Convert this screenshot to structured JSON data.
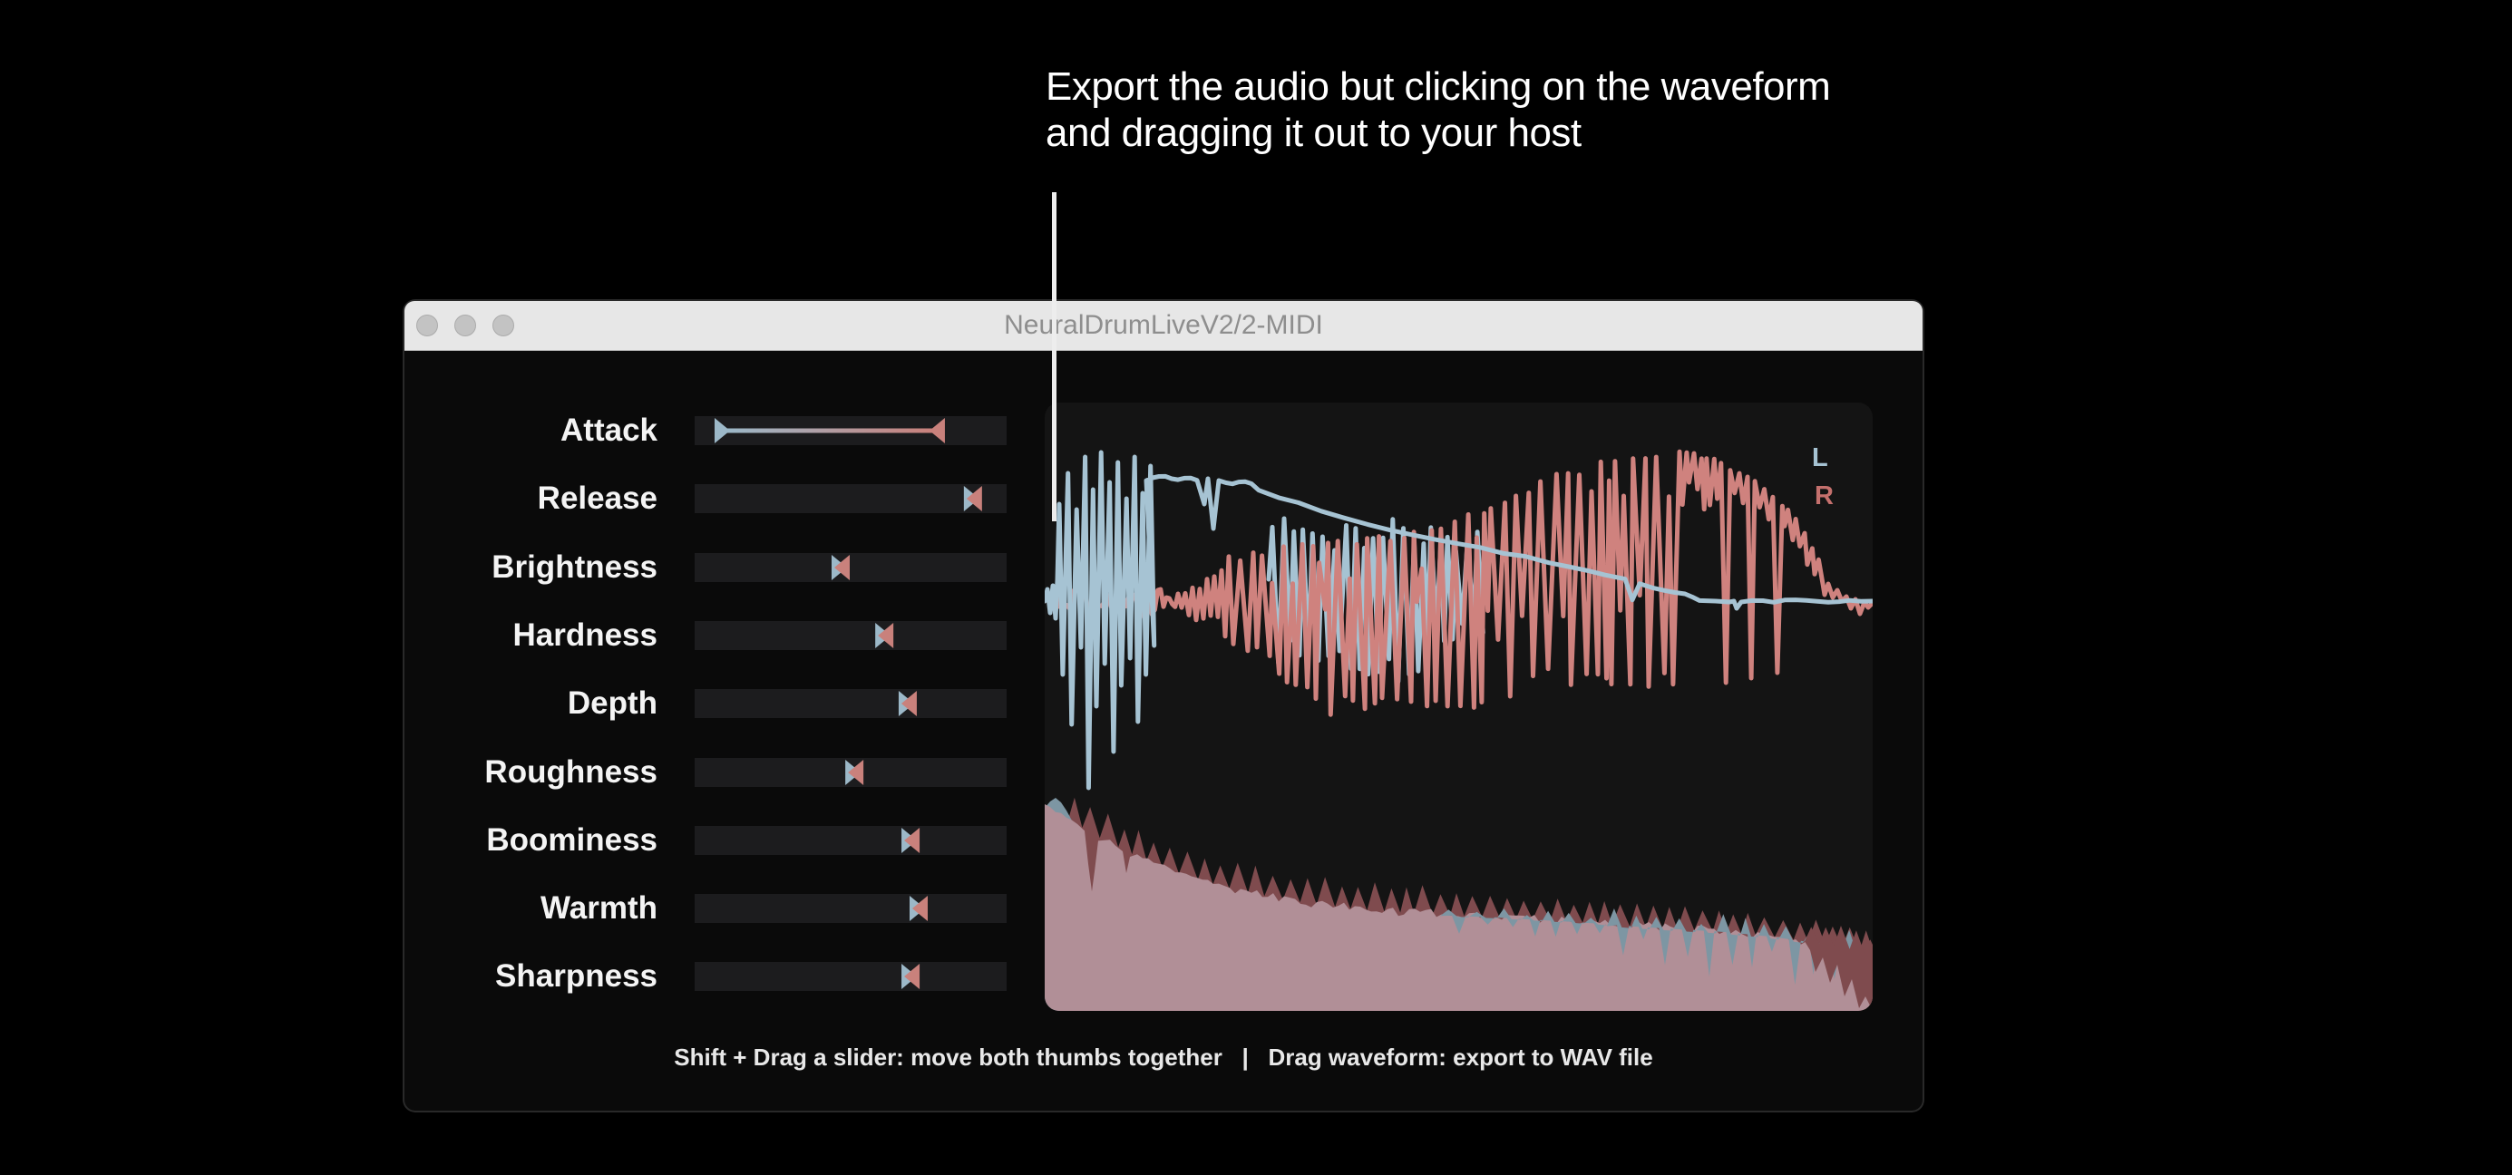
{
  "callout": {
    "line1": "Export the audio but clicking on the waveform",
    "line2": "and dragging it out to your host"
  },
  "window_title": "NeuralDrumLiveV2/2-MIDI",
  "sliders": [
    {
      "label": "Attack",
      "type": "range",
      "min": 0.09,
      "max": 0.776
    },
    {
      "label": "Release",
      "type": "single",
      "value": 0.892
    },
    {
      "label": "Brightness",
      "type": "single",
      "value": 0.468
    },
    {
      "label": "Hardness",
      "type": "single",
      "value": 0.608
    },
    {
      "label": "Depth",
      "type": "single",
      "value": 0.683
    },
    {
      "label": "Roughness",
      "type": "single",
      "value": 0.512
    },
    {
      "label": "Boominess",
      "type": "single",
      "value": 0.692
    },
    {
      "label": "Warmth",
      "type": "single",
      "value": 0.718
    },
    {
      "label": "Sharpness",
      "type": "single",
      "value": 0.692
    }
  ],
  "thumb_colors": {
    "min": "#9cb8c8",
    "max": "#c9817c"
  },
  "waveform": {
    "left_label": "L",
    "right_label": "R",
    "left_color": "#a6c3d3",
    "right_color": "#cf827e",
    "right_label_color": "#c4706d",
    "spectrum_left_color": "#7d96a3",
    "spectrum_right_color": "#7f4b4e",
    "spectrum_overlap_color": "#b18f97"
  },
  "status_text": "Shift + Drag a slider: move both thumbs together   |   Drag waveform: export to WAV file"
}
